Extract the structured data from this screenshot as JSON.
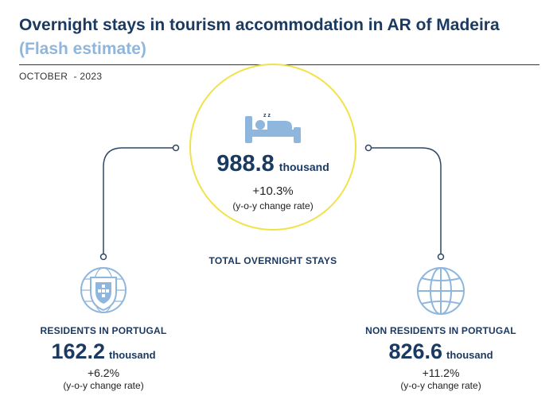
{
  "header": {
    "title": "Overnight stays in tourism accommodation in AR of Madeira",
    "subtitle": "(Flash estimate)",
    "period": "OCTOBER  - 2023"
  },
  "total": {
    "value": "988.8",
    "unit": "thousand",
    "change": "+10.3%",
    "note": "(y-o-y change rate)",
    "label": "TOTAL OVERNIGHT STAYS",
    "icon": "bed-sleep-icon",
    "sleep_mark": "z z"
  },
  "residents": {
    "label": "RESIDENTS IN PORTUGAL",
    "value": "162.2",
    "unit": "thousand",
    "change": "+6.2%",
    "note": "(y-o-y change rate)",
    "icon": "portugal-coat-of-arms-icon"
  },
  "non_residents": {
    "label": "NON RESIDENTS IN PORTUGAL",
    "value": "826.6",
    "unit": "thousand",
    "change": "+11.2%",
    "note": "(y-o-y change rate)",
    "icon": "globe-icon"
  },
  "colors": {
    "navy": "#1b3a61",
    "light_blue": "#8fb6dc",
    "circle_outline": "#f2e24a",
    "connector": "#2f4766"
  }
}
